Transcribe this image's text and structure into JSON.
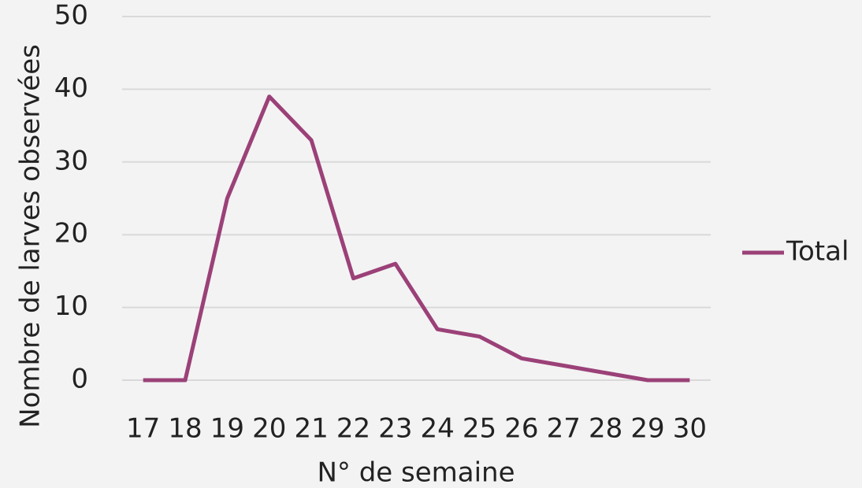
{
  "chart_data": {
    "type": "line",
    "x_label": "N° de semaine",
    "y_label": "Nombre de larves observées",
    "categories": [
      "17",
      "18",
      "19",
      "20",
      "21",
      "22",
      "23",
      "24",
      "25",
      "26",
      "27",
      "28",
      "29",
      "30"
    ],
    "series": [
      {
        "name": "Total",
        "color": "#9b4178",
        "values": [
          0,
          0,
          25,
          39,
          33,
          14,
          16,
          7,
          6,
          3,
          2,
          1,
          0,
          0
        ]
      }
    ],
    "ylim": [
      0,
      50
    ],
    "yticks": [
      0,
      10,
      20,
      30,
      40,
      50
    ],
    "grid": true,
    "legend": "right"
  }
}
